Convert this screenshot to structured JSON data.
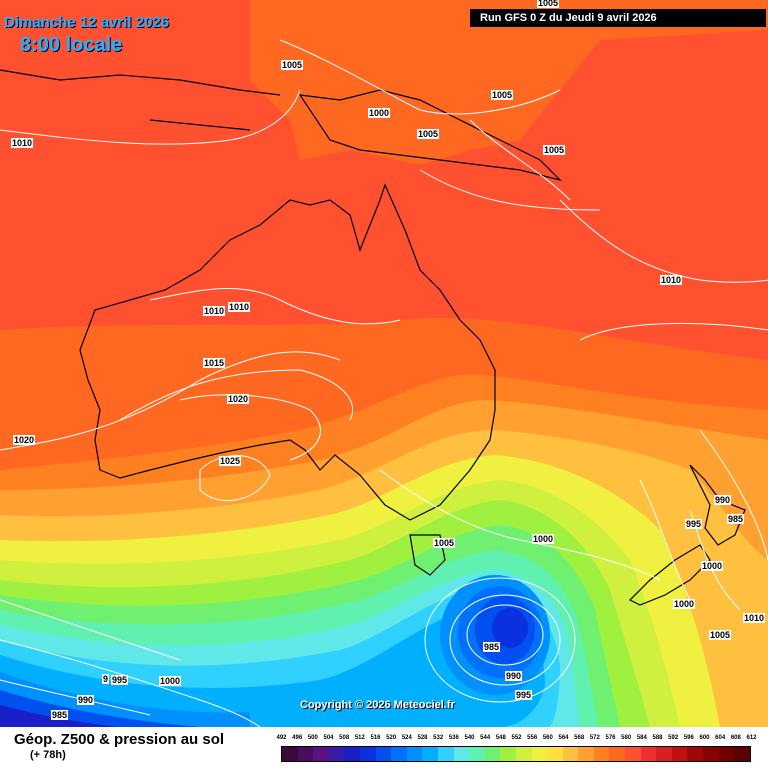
{
  "header": {
    "date": "Dimanche 12 avril 2026",
    "time": "8:00 locale",
    "run": "Run GFS 0 Z du Jeudi 9 avril 2026"
  },
  "copyright": "Copyright © 2026 Meteociel.fr",
  "footer": {
    "title": "Géop. Z500 & pression au sol",
    "subtitle": "(+ 78h)"
  },
  "scale": {
    "labels": [
      "492",
      "496",
      "500",
      "504",
      "508",
      "512",
      "516",
      "520",
      "524",
      "528",
      "532",
      "536",
      "540",
      "544",
      "548",
      "552",
      "556",
      "560",
      "564",
      "568",
      "572",
      "576",
      "580",
      "584",
      "588",
      "592",
      "596",
      "600",
      "604",
      "608",
      "612"
    ],
    "colors": [
      "#3a0a3a",
      "#4b0d5e",
      "#5a1184",
      "#3a1aa8",
      "#1a20c8",
      "#0a30e0",
      "#0050f0",
      "#0070ff",
      "#0090ff",
      "#00b0ff",
      "#30d0ff",
      "#60e8e8",
      "#60f0b0",
      "#70f070",
      "#a0f040",
      "#d0f040",
      "#f0f040",
      "#ffe040",
      "#ffc040",
      "#ffa030",
      "#ff8020",
      "#ff6820",
      "#ff5030",
      "#f03030",
      "#d82020",
      "#c01010",
      "#a00808",
      "#880404",
      "#700000",
      "#580000"
    ]
  },
  "pressure_labels": [
    {
      "text": "1005"
    },
    {
      "text": "1005"
    },
    {
      "text": "1000"
    },
    {
      "text": "1005"
    },
    {
      "text": "1005"
    },
    {
      "text": "1005"
    },
    {
      "text": "1010"
    },
    {
      "text": "1010"
    },
    {
      "text": "1010"
    },
    {
      "text": "1010"
    },
    {
      "text": "1015"
    },
    {
      "text": "1020"
    },
    {
      "text": "1020"
    },
    {
      "text": "1025"
    },
    {
      "text": "1005"
    },
    {
      "text": "1000"
    },
    {
      "text": "990"
    },
    {
      "text": "985"
    },
    {
      "text": "995"
    },
    {
      "text": "1000"
    },
    {
      "text": "1000"
    },
    {
      "text": "1005"
    },
    {
      "text": "1010"
    },
    {
      "text": "985"
    },
    {
      "text": "990"
    },
    {
      "text": "995"
    },
    {
      "text": "9"
    },
    {
      "text": "995"
    },
    {
      "text": "1000"
    },
    {
      "text": "990"
    },
    {
      "text": "985"
    }
  ]
}
